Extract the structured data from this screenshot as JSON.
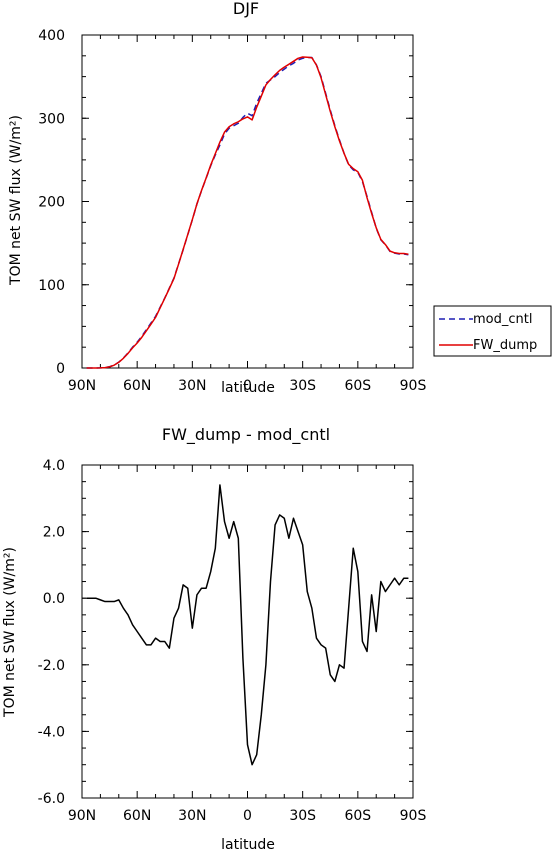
{
  "chart_data": [
    {
      "type": "line",
      "title": "DJF",
      "xlabel": "latitude",
      "ylabel": "TOM net SW flux (W/m²)",
      "xlim": [
        90,
        -90
      ],
      "ylim": [
        0,
        400
      ],
      "x_ticks": [
        {
          "value": 90,
          "label": "90N"
        },
        {
          "value": 60,
          "label": "60N"
        },
        {
          "value": 30,
          "label": "30N"
        },
        {
          "value": 0,
          "label": "0"
        },
        {
          "value": -30,
          "label": "30S"
        },
        {
          "value": -60,
          "label": "60S"
        },
        {
          "value": -90,
          "label": "90S"
        }
      ],
      "y_ticks": [
        {
          "value": 0,
          "label": "0"
        },
        {
          "value": 100,
          "label": "100"
        },
        {
          "value": 200,
          "label": "200"
        },
        {
          "value": 300,
          "label": "300"
        },
        {
          "value": 400,
          "label": "400"
        }
      ],
      "legend_position": "right",
      "series": [
        {
          "name": "mod_cntl",
          "color": "#1f1fb4",
          "dash": "dashed",
          "x": [
            87.5,
            85,
            82.5,
            80,
            77.5,
            75,
            72.5,
            70,
            67.5,
            65,
            62.5,
            60,
            57.5,
            55,
            52.5,
            50,
            47.5,
            45,
            42.5,
            40,
            37.5,
            35,
            32.5,
            30,
            27.5,
            25,
            22.5,
            20,
            17.5,
            15,
            12.5,
            10,
            7.5,
            5,
            2.5,
            0,
            -2.5,
            -5,
            -7.5,
            -10,
            -12.5,
            -15,
            -17.5,
            -20,
            -22.5,
            -25,
            -27.5,
            -30,
            -32.5,
            -35,
            -37.5,
            -40,
            -42.5,
            -45,
            -47.5,
            -50,
            -52.5,
            -55,
            -57.5,
            -60,
            -62.5,
            -65,
            -67.5,
            -70,
            -72.5,
            -75,
            -77.5,
            -80,
            -82.5,
            -85,
            -87.5
          ],
          "values": [
            0,
            0,
            0,
            0.2,
            0.5,
            1.5,
            3.5,
            7,
            12,
            18,
            25,
            31,
            38,
            46,
            54,
            62,
            73,
            84,
            96,
            108,
            125,
            142,
            160,
            178,
            197,
            213,
            228,
            243,
            256,
            268,
            281,
            288,
            291,
            294,
            301,
            306,
            303,
            318,
            330,
            342,
            346,
            350,
            355,
            359,
            363,
            366,
            370,
            372,
            373,
            373,
            364,
            350,
            330,
            310,
            291,
            274,
            258,
            244,
            238,
            235,
            224,
            206,
            187,
            168,
            154,
            148,
            140,
            138,
            137,
            137,
            136
          ]
        },
        {
          "name": "FW_dump",
          "color": "#e00000",
          "dash": "solid",
          "x": [
            87.5,
            85,
            82.5,
            80,
            77.5,
            75,
            72.5,
            70,
            67.5,
            65,
            62.5,
            60,
            57.5,
            55,
            52.5,
            50,
            47.5,
            45,
            42.5,
            40,
            37.5,
            35,
            32.5,
            30,
            27.5,
            25,
            22.5,
            20,
            17.5,
            15,
            12.5,
            10,
            7.5,
            5,
            2.5,
            0,
            -2.5,
            -5,
            -7.5,
            -10,
            -12.5,
            -15,
            -17.5,
            -20,
            -22.5,
            -25,
            -27.5,
            -30,
            -32.5,
            -35,
            -37.5,
            -40,
            -42.5,
            -45,
            -47.5,
            -50,
            -52.5,
            -55,
            -57.5,
            -60,
            -62.5,
            -65,
            -67.5,
            -70,
            -72.5,
            -75,
            -77.5,
            -80,
            -82.5,
            -85,
            -87.5
          ],
          "values": [
            0,
            0,
            0,
            0.1,
            0.4,
            1.4,
            3.4,
            6.9,
            11.7,
            17.5,
            24.2,
            30,
            36.8,
            44.6,
            52.6,
            60.8,
            72.3,
            83.7,
            95.5,
            107.4,
            124.7,
            142.4,
            160.3,
            178.3,
            197.1,
            213.3,
            228.2,
            243.8,
            257.5,
            271.4,
            283.3,
            289.8,
            293.3,
            295.8,
            299.2,
            301.6,
            298,
            313.3,
            326.5,
            340,
            346.5,
            352.2,
            357.5,
            361.4,
            364.8,
            368.4,
            372,
            373.6,
            373.2,
            372.7,
            363.8,
            348.6,
            328.5,
            308.3,
            289.8,
            272.8,
            257.9,
            244.7,
            239.5,
            235.8,
            225.5,
            204.6,
            185.7,
            168.4,
            154.5,
            148.2,
            140.4,
            138.4,
            137.6,
            137.6,
            136.6
          ]
        }
      ]
    },
    {
      "type": "line",
      "title": "FW_dump - mod_cntl",
      "xlabel": "latitude",
      "ylabel": "TOM net SW flux (W/m²)",
      "xlim": [
        90,
        -90
      ],
      "ylim": [
        -6,
        4
      ],
      "x_ticks": [
        {
          "value": 90,
          "label": "90N"
        },
        {
          "value": 60,
          "label": "60N"
        },
        {
          "value": 30,
          "label": "30N"
        },
        {
          "value": 0,
          "label": "0"
        },
        {
          "value": -30,
          "label": "30S"
        },
        {
          "value": -60,
          "label": "60S"
        },
        {
          "value": -90,
          "label": "90S"
        }
      ],
      "y_ticks": [
        {
          "value": -6,
          "label": "-6.0"
        },
        {
          "value": -4,
          "label": "-4.0"
        },
        {
          "value": -2,
          "label": "-2.0"
        },
        {
          "value": 0,
          "label": "0.0"
        },
        {
          "value": 2,
          "label": "2.0"
        },
        {
          "value": 4,
          "label": "4.0"
        }
      ],
      "series": [
        {
          "name": "",
          "color": "#000000",
          "dash": "solid",
          "x": [
            87.5,
            85,
            82.5,
            80,
            77.5,
            75,
            72.5,
            70,
            67.5,
            65,
            62.5,
            60,
            57.5,
            55,
            52.5,
            50,
            47.5,
            45,
            42.5,
            40,
            37.5,
            35,
            32.5,
            30,
            27.5,
            25,
            22.5,
            20,
            17.5,
            15,
            12.5,
            10,
            7.5,
            5,
            2.5,
            0,
            -2.5,
            -5,
            -7.5,
            -10,
            -12.5,
            -15,
            -17.5,
            -20,
            -22.5,
            -25,
            -27.5,
            -30,
            -32.5,
            -35,
            -37.5,
            -40,
            -42.5,
            -45,
            -47.5,
            -50,
            -52.5,
            -55,
            -57.5,
            -60,
            -62.5,
            -65,
            -67.5,
            -70,
            -72.5,
            -75,
            -77.5,
            -80,
            -82.5,
            -85,
            -87.5
          ],
          "values": [
            0,
            0,
            0,
            -0.05,
            -0.1,
            -0.1,
            -0.1,
            -0.05,
            -0.3,
            -0.5,
            -0.8,
            -1.0,
            -1.2,
            -1.4,
            -1.4,
            -1.2,
            -1.3,
            -1.3,
            -1.5,
            -0.6,
            -0.3,
            0.4,
            0.3,
            -0.9,
            0.1,
            0.3,
            0.3,
            0.8,
            1.5,
            3.4,
            2.3,
            1.8,
            2.3,
            1.8,
            -1.8,
            -4.4,
            -5.0,
            -4.7,
            -3.5,
            -2.0,
            0.5,
            2.2,
            2.5,
            2.4,
            1.8,
            2.4,
            2.0,
            1.6,
            0.2,
            -0.3,
            -1.2,
            -1.4,
            -1.5,
            -2.3,
            -2.5,
            -2.0,
            -2.1,
            -0.3,
            1.5,
            0.8,
            -1.3,
            -1.6,
            0.1,
            -1.0,
            0.5,
            0.2,
            0.4,
            0.6,
            0.4,
            0.6,
            0.6
          ]
        }
      ]
    }
  ]
}
